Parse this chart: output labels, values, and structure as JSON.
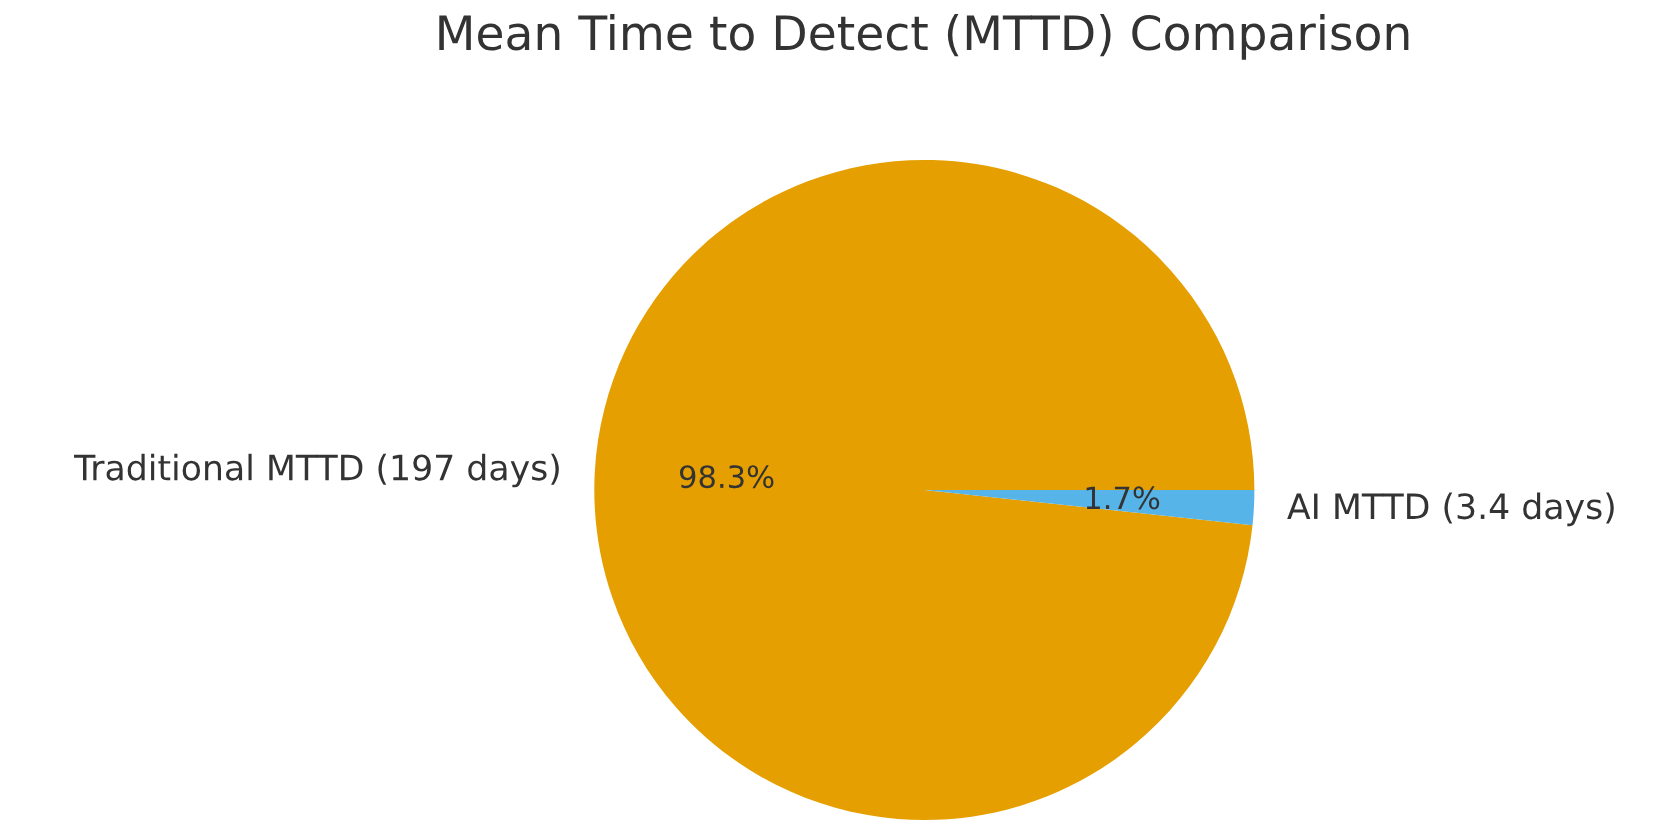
{
  "chart_data": {
    "type": "pie",
    "title": "Mean Time to Detect (MTTD) Comparison",
    "categories": [
      "Traditional MTTD (197 days)",
      "AI MTTD (3.4 days)"
    ],
    "values": [
      98.3,
      1.7
    ],
    "colors": [
      "#e69f00",
      "#56b4e9"
    ],
    "value_labels": [
      "98.3%",
      "1.7%"
    ]
  }
}
